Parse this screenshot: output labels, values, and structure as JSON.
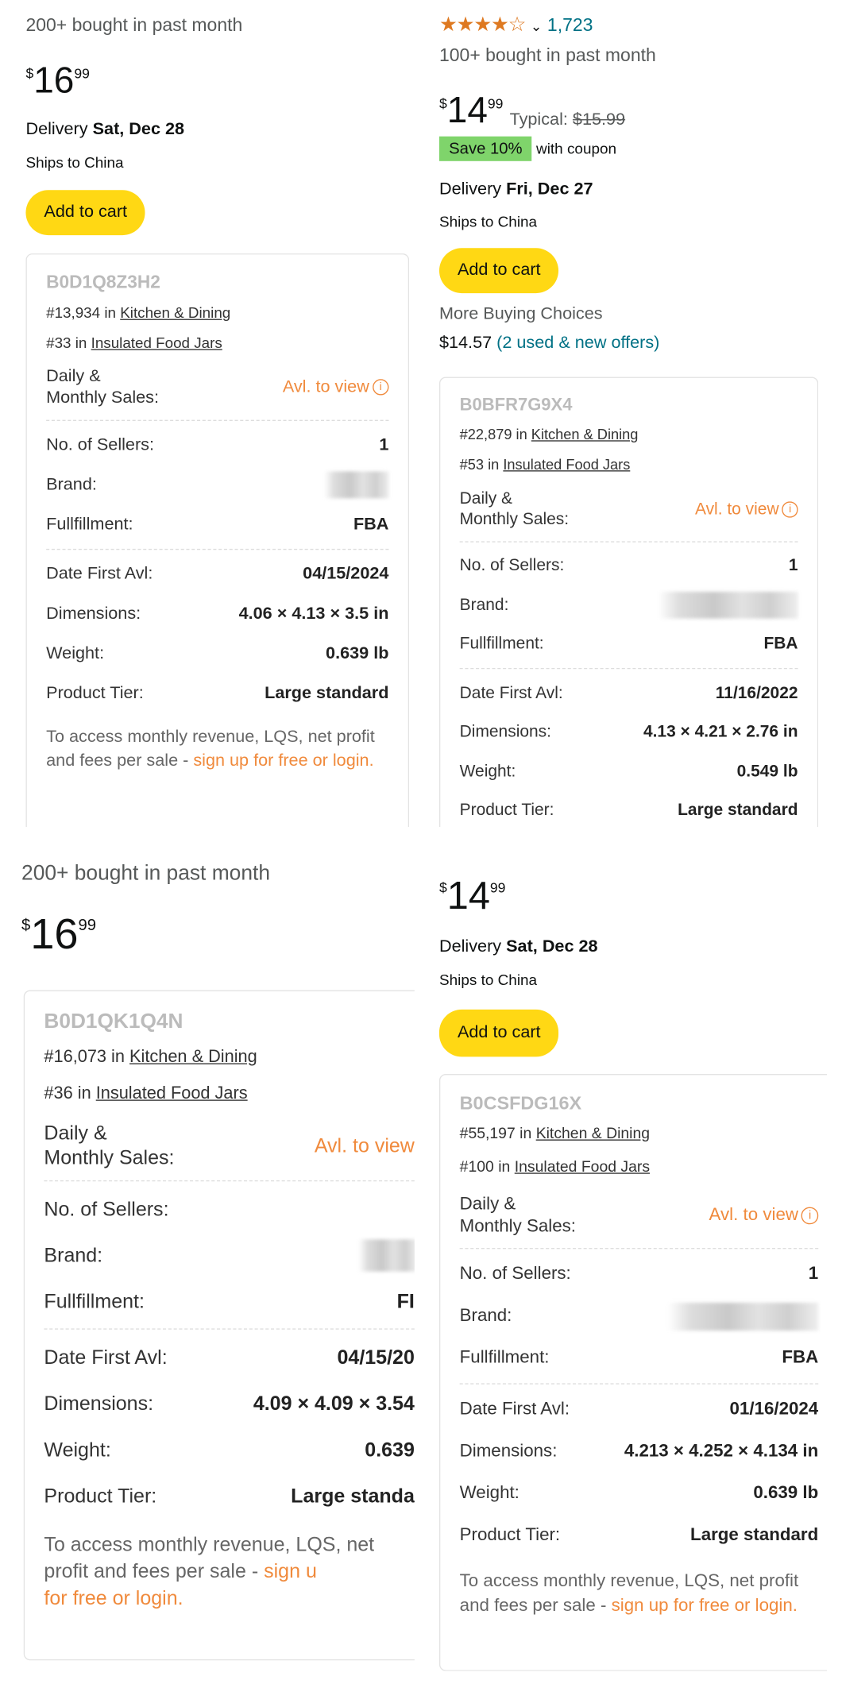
{
  "common": {
    "add_to_cart": "Add to cart",
    "ships_to": "Ships to China",
    "delivery_label": "Delivery",
    "currency": "$",
    "daily_sales_label_1": "Daily &",
    "daily_sales_label_2": "Monthly Sales:",
    "avl_to_view": "Avl. to view",
    "info_icon": "i",
    "labels": {
      "sellers": "No. of Sellers:",
      "brand": "Brand:",
      "fulfillment": "Fullfillment:",
      "date_first": "Date First Avl:",
      "dimensions": "Dimensions:",
      "weight": "Weight:",
      "tier": "Product Tier:"
    },
    "rank_in": "in",
    "footer_text": "To access monthly revenue, LQS, net profit and fees per sale - ",
    "footer_link": "sign up for free or login."
  },
  "products": [
    {
      "bought": "200+ bought in past month",
      "price_whole": "16",
      "price_frac": "99",
      "delivery_date": "Sat, Dec 28",
      "asin": "B0D1Q8Z3H2",
      "rank1": "#13,934",
      "cat1": "Kitchen & Dining",
      "rank2": "#33",
      "cat2": "Insulated Food Jars",
      "sellers": "1",
      "fulfillment": "FBA",
      "date_first": "04/15/2024",
      "dimensions": "4.06 × 4.13 × 3.5 in",
      "weight": "0.639 lb",
      "tier": "Large standard"
    },
    {
      "rating": 4,
      "rating_count": "1,723",
      "bought": "100+ bought in past month",
      "price_whole": "14",
      "price_frac": "99",
      "typical_label": "Typical:",
      "typical_price": "$15.99",
      "coupon": "Save 10%",
      "coupon_suffix": "with coupon",
      "delivery_date": "Fri, Dec 27",
      "more_choices": "More Buying Choices",
      "more_price": "$14.57",
      "more_offers": "(2 used & new offers)",
      "asin": "B0BFR7G9X4",
      "rank1": "#22,879",
      "cat1": "Kitchen & Dining",
      "rank2": "#53",
      "cat2": "Insulated Food Jars",
      "sellers": "1",
      "fulfillment": "FBA",
      "date_first": "11/16/2022",
      "dimensions": "4.13 × 4.21 × 2.76 in",
      "weight": "0.549 lb",
      "tier": "Large standard"
    },
    {
      "bought": "200+ bought in past month",
      "price_whole": "16",
      "price_frac": "99",
      "asin": "B0D1QK1Q4N",
      "rank1": "#16,073",
      "cat1": "Kitchen & Dining",
      "rank2": "#36",
      "cat2": "Insulated Food Jars",
      "fulfillment": "FI",
      "date_first": "04/15/20",
      "dimensions": "4.09 × 4.09 × 3.54",
      "weight": "0.639",
      "tier": "Large standa",
      "avl_to_view": "Avl. to view",
      "footer_link": "sign u",
      "footer_link2": "for free or login."
    },
    {
      "price_whole": "14",
      "price_frac": "99",
      "delivery_date": "Sat, Dec 28",
      "asin": "B0CSFDG16X",
      "rank1": "#55,197",
      "cat1": "Kitchen & Dining",
      "rank2": "#100",
      "cat2": "Insulated Food Jars",
      "sellers": "1",
      "fulfillment": "FBA",
      "date_first": "01/16/2024",
      "dimensions": "4.213 × 4.252 × 4.134 in",
      "weight": "0.639 lb",
      "tier": "Large standard"
    }
  ]
}
